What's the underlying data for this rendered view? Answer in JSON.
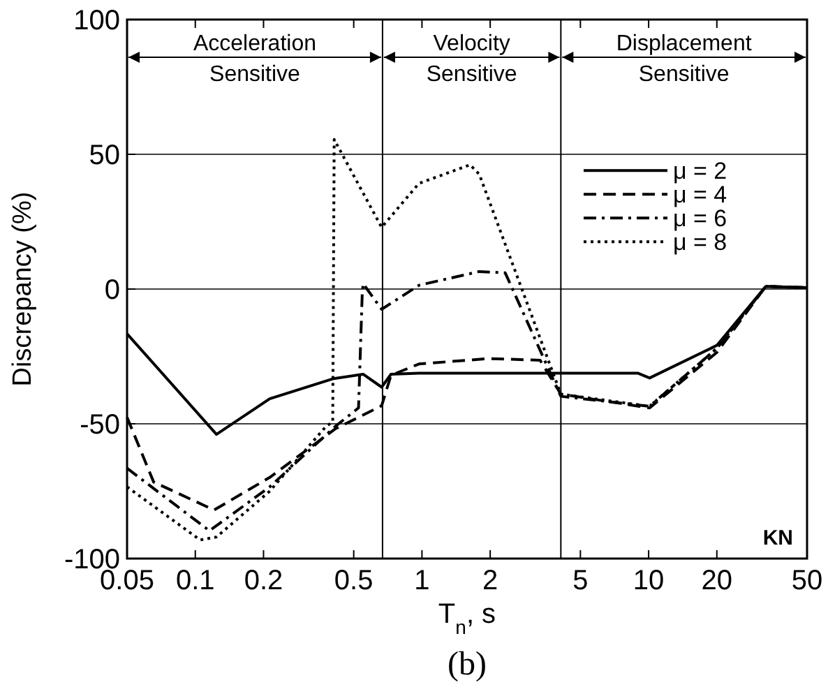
{
  "chart_data": {
    "type": "line",
    "subtitle": "(b)",
    "xlabel": "T$_{n}$, s",
    "ylabel": "Discrepancy (%)",
    "log": "x",
    "xlim": [
      0.05,
      50
    ],
    "xticks": [
      0.05,
      0.1,
      0.2,
      0.5,
      1,
      2,
      5,
      10,
      20,
      50
    ],
    "ylim": [
      -100,
      100
    ],
    "yticks": [
      -100,
      -50,
      0,
      50,
      100
    ],
    "grid": "y",
    "legend": "top right",
    "ref_lines": [
      {
        "axis": "x",
        "value": 0.67
      },
      {
        "axis": "x",
        "value": 4.1
      }
    ],
    "annotations": [
      "KN",
      "Acceleration Sensitive",
      "Velocity Sensitive",
      "Displacement Sensitive"
    ],
    "series": [
      {
        "name": "μ = 2",
        "color": "#000000",
        "line_style": "solid",
        "x": [
          0.05,
          0.124,
          0.213,
          0.404,
          0.55,
          0.664,
          0.73,
          0.97,
          8.95,
          10.1,
          20,
          32.9,
          50
        ],
        "values": [
          -16.6,
          -53.9,
          -40.7,
          -33.3,
          -31.6,
          -36.4,
          -31.6,
          -31.2,
          -31.2,
          -33,
          -20.9,
          1,
          0.5
        ]
      },
      {
        "name": "μ = 4",
        "color": "#000000",
        "line_style": "dashed",
        "x": [
          0.05,
          0.0655,
          0.121,
          0.213,
          0.414,
          0.664,
          0.73,
          0.97,
          1.97,
          3.32,
          4.1,
          10.1,
          20,
          32.9,
          50
        ],
        "values": [
          -47.6,
          -71.6,
          -82,
          -69.9,
          -51.9,
          -43.3,
          -32,
          -27.8,
          -25.8,
          -26.4,
          -39,
          -44.1,
          -23.5,
          1,
          0.5
        ]
      },
      {
        "name": "μ = 6",
        "color": "#000000",
        "line_style": "dashdot",
        "x": [
          0.05,
          0.1155,
          0.213,
          0.414,
          0.525,
          0.545,
          0.55,
          0.664,
          0.97,
          1.79,
          2.33,
          4.1,
          10.1,
          20,
          32.9,
          50
        ],
        "values": [
          -66.5,
          -89.7,
          -73.4,
          -51,
          -44.1,
          -2,
          2,
          -7.5,
          1.4,
          6.5,
          6,
          -39.8,
          -43.5,
          -22,
          1,
          0.5
        ]
      },
      {
        "name": "μ = 8",
        "color": "#000000",
        "line_style": "dotted",
        "x": [
          0.05,
          0.105,
          0.124,
          0.213,
          0.377,
          0.404,
          0.41,
          0.664,
          0.97,
          1.63,
          1.79,
          4.1,
          10.1,
          20,
          32.9,
          50
        ],
        "values": [
          -73.4,
          -93.1,
          -92,
          -75,
          -51,
          -49.3,
          55.5,
          22.9,
          39.2,
          46.1,
          42.6,
          -39,
          -43.5,
          -22,
          1,
          0.5
        ]
      }
    ]
  }
}
